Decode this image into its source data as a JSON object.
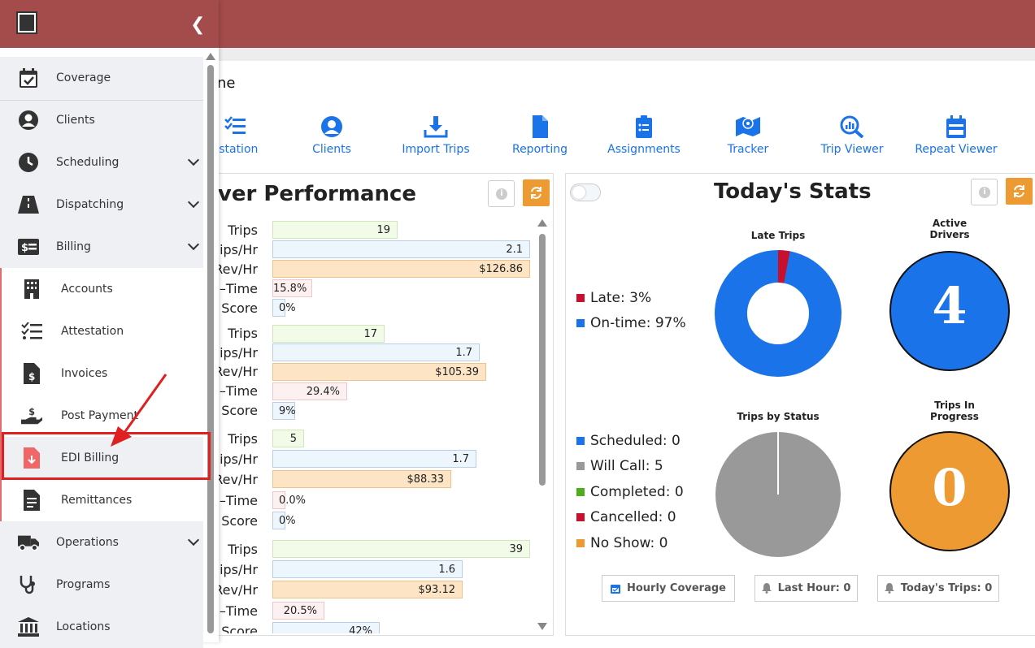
{
  "page": {
    "title_fragment": "ne"
  },
  "quick_links": [
    {
      "label": "estation",
      "icon": "checklist-icon"
    },
    {
      "label": "Clients",
      "icon": "user-circle-icon"
    },
    {
      "label": "Import Trips",
      "icon": "download-icon"
    },
    {
      "label": "Reporting",
      "icon": "document-icon"
    },
    {
      "label": "Assignments",
      "icon": "clipboard-list-icon"
    },
    {
      "label": "Tracker",
      "icon": "map-icon"
    },
    {
      "label": "Trip Viewer",
      "icon": "search-chart-icon"
    },
    {
      "label": "Repeat Viewer",
      "icon": "calendar-icon"
    }
  ],
  "driver_performance": {
    "title": "iver Performance",
    "labels": {
      "trips": "Trips",
      "trips_hr": "ips/Hr",
      "rev_hr": "Rev/Hr",
      "on_time": "–Time",
      "score": "Score"
    },
    "drivers": [
      {
        "trips": "19",
        "trips_hr": "2.1",
        "rev_hr": "$126.86",
        "on_time": "15.8%",
        "score": "0%"
      },
      {
        "trips": "17",
        "trips_hr": "1.7",
        "rev_hr": "$105.39",
        "on_time": "29.4%",
        "score": "9%"
      },
      {
        "trips": "5",
        "trips_hr": "1.7",
        "rev_hr": "$88.33",
        "on_time": "0.0%",
        "score": "0%"
      },
      {
        "trips": "39",
        "trips_hr": "1.6",
        "rev_hr": "$93.12",
        "on_time": "20.5%",
        "score": "42%"
      }
    ]
  },
  "todays_stats": {
    "title": "Today's Stats",
    "late_trips": {
      "caption": "Late Trips",
      "legend": [
        {
          "label": "Late: 3%",
          "color": "#c8102e"
        },
        {
          "label": "On-time: 97%",
          "color": "#1a73e8"
        }
      ],
      "late_pct": 3,
      "on_time_pct": 97
    },
    "active_drivers": {
      "caption_line1": "Active",
      "caption_line2": "Drivers",
      "value": "4",
      "color": "#1a73e8"
    },
    "trips_by_status": {
      "caption": "Trips by Status",
      "legend": [
        {
          "label": "Scheduled: 0",
          "color": "#1a73e8"
        },
        {
          "label": "Will Call: 5",
          "color": "#999999"
        },
        {
          "label": "Completed: 0",
          "color": "#4cae1a"
        },
        {
          "label": "Cancelled: 0",
          "color": "#c8102e"
        },
        {
          "label": "No Show: 0",
          "color": "#ee9a32"
        }
      ]
    },
    "trips_in_progress": {
      "caption_line1": "Trips In",
      "caption_line2": "Progress",
      "value": "0",
      "color": "#ee9a32"
    },
    "buttons": {
      "hourly": "Hourly Coverage",
      "last_hour": "Last Hour: 0",
      "today_trips": "Today's Trips: 0"
    }
  },
  "sidebar": {
    "collapse_glyph": "❮",
    "items": [
      {
        "label": "Coverage",
        "icon": "calendar-check-icon"
      },
      {
        "label": "Clients",
        "icon": "user-circle-icon"
      },
      {
        "label": "Scheduling",
        "icon": "clock-icon"
      },
      {
        "label": "Dispatching",
        "icon": "road-icon"
      },
      {
        "label": "Billing",
        "icon": "money-icon"
      }
    ],
    "billing_sub": [
      {
        "label": "Accounts",
        "icon": "building-icon"
      },
      {
        "label": "Attestation",
        "icon": "checklist-icon"
      },
      {
        "label": "Invoices",
        "icon": "invoice-icon"
      },
      {
        "label": "Post Payment",
        "icon": "hand-dollar-icon"
      },
      {
        "label": "EDI Billing",
        "icon": "file-download-icon"
      },
      {
        "label": "Remittances",
        "icon": "receipt-icon"
      }
    ],
    "bottom_items": [
      {
        "label": "Operations",
        "icon": "truck-icon"
      },
      {
        "label": "Programs",
        "icon": "stethoscope-icon"
      },
      {
        "label": "Locations",
        "icon": "landmark-icon"
      }
    ]
  }
}
